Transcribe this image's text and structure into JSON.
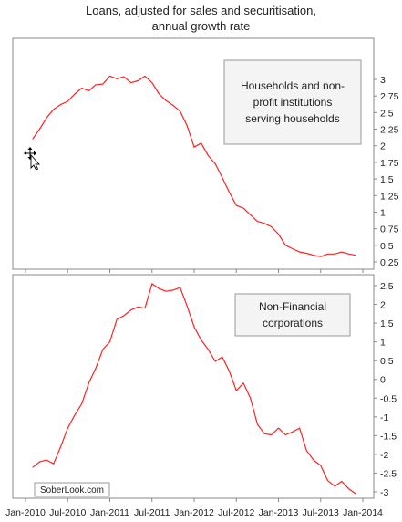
{
  "title": {
    "line1": "Loans, adjusted for sales and securitisation,",
    "line2": "annual growth rate"
  },
  "watermark": "SoberLook.com",
  "x_ticks": [
    "Jan-2010",
    "Jul-2010",
    "Jan-2011",
    "Jul-2011",
    "Jan-2012",
    "Jul-2012",
    "Jan-2013",
    "Jul-2013",
    "Jan-2014"
  ],
  "colors": {
    "series": "#ff2020",
    "axis": "#888888",
    "box_border": "#999999",
    "box_fill": "#f4f4f4"
  },
  "chart_data": [
    {
      "type": "line",
      "panel": "top",
      "label_lines": [
        "Households and non-",
        "profit institutions",
        "serving households"
      ],
      "ylim": [
        0.25,
        3.0
      ],
      "yticks": [
        "0.25",
        "0.5",
        "0.75",
        "1",
        "1.25",
        "1.5",
        "1.75",
        "2",
        "2.25",
        "2.5",
        "2.75",
        "3"
      ],
      "legend_position": "top-right",
      "x": [
        "2010-02",
        "2010-03",
        "2010-04",
        "2010-05",
        "2010-06",
        "2010-07",
        "2010-08",
        "2010-09",
        "2010-10",
        "2010-11",
        "2010-12",
        "2011-01",
        "2011-02",
        "2011-03",
        "2011-04",
        "2011-05",
        "2011-06",
        "2011-07",
        "2011-08",
        "2011-09",
        "2011-10",
        "2011-11",
        "2011-12",
        "2012-01",
        "2012-02",
        "2012-03",
        "2012-04",
        "2012-05",
        "2012-06",
        "2012-07",
        "2012-08",
        "2012-09",
        "2012-10",
        "2012-11",
        "2012-12",
        "2013-01",
        "2013-02",
        "2013-03",
        "2013-04",
        "2013-05",
        "2013-06",
        "2013-07",
        "2013-08",
        "2013-09",
        "2013-10",
        "2013-11",
        "2013-12"
      ],
      "values": [
        2.1,
        2.25,
        2.42,
        2.55,
        2.62,
        2.67,
        2.78,
        2.87,
        2.83,
        2.92,
        2.93,
        3.05,
        3.01,
        3.04,
        2.95,
        2.98,
        3.05,
        2.95,
        2.78,
        2.68,
        2.61,
        2.52,
        2.3,
        1.98,
        2.04,
        1.85,
        1.73,
        1.52,
        1.3,
        1.1,
        1.06,
        0.96,
        0.86,
        0.83,
        0.78,
        0.67,
        0.5,
        0.45,
        0.4,
        0.38,
        0.35,
        0.33,
        0.37,
        0.37,
        0.4,
        0.37,
        0.35
      ]
    },
    {
      "type": "line",
      "panel": "bottom",
      "label_lines": [
        "Non-Financial",
        "corporations"
      ],
      "ylim": [
        -3.1,
        2.6
      ],
      "yticks": [
        "-3",
        "-2.5",
        "-2",
        "-1.5",
        "-1",
        "-0.5",
        "0",
        "0.5",
        "1",
        "1.5",
        "2",
        "2.5"
      ],
      "legend_position": "top-right",
      "x": [
        "2010-02",
        "2010-03",
        "2010-04",
        "2010-05",
        "2010-06",
        "2010-07",
        "2010-08",
        "2010-09",
        "2010-10",
        "2010-11",
        "2010-12",
        "2011-01",
        "2011-02",
        "2011-03",
        "2011-04",
        "2011-05",
        "2011-06",
        "2011-07",
        "2011-08",
        "2011-09",
        "2011-10",
        "2011-11",
        "2011-12",
        "2012-01",
        "2012-02",
        "2012-03",
        "2012-04",
        "2012-05",
        "2012-06",
        "2012-07",
        "2012-08",
        "2012-09",
        "2012-10",
        "2012-11",
        "2012-12",
        "2013-01",
        "2013-02",
        "2013-03",
        "2013-04",
        "2013-05",
        "2013-06",
        "2013-07",
        "2013-08",
        "2013-09",
        "2013-10",
        "2013-11",
        "2013-12"
      ],
      "values": [
        -2.35,
        -2.2,
        -2.15,
        -2.25,
        -1.8,
        -1.3,
        -0.95,
        -0.65,
        -0.1,
        0.3,
        0.8,
        1.0,
        1.6,
        1.7,
        1.85,
        1.93,
        1.9,
        2.55,
        2.42,
        2.35,
        2.38,
        2.45,
        1.95,
        1.4,
        1.05,
        0.8,
        0.48,
        0.6,
        0.22,
        -0.3,
        -0.1,
        -0.5,
        -1.2,
        -1.45,
        -1.48,
        -1.3,
        -1.48,
        -1.4,
        -1.3,
        -1.9,
        -2.15,
        -2.3,
        -2.7,
        -2.85,
        -2.72,
        -2.92,
        -3.05
      ]
    }
  ]
}
